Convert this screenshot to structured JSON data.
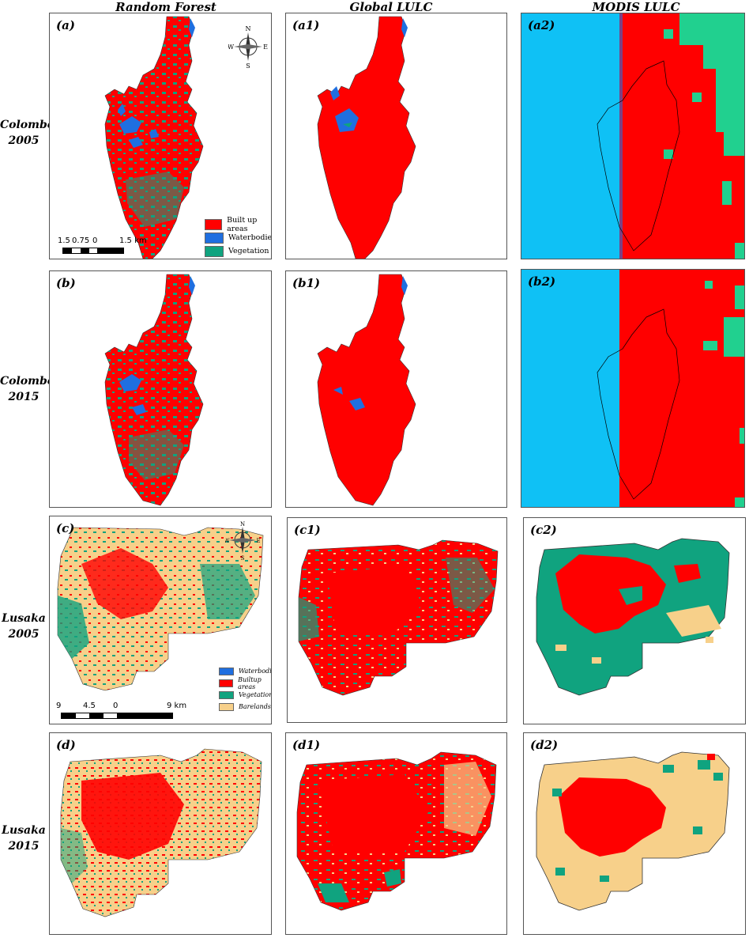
{
  "columns": {
    "rf": "Random Forest",
    "global": "Global LULC",
    "modis": "MODIS LULC"
  },
  "rows": [
    {
      "city": "Colombo",
      "year": "2005"
    },
    {
      "city": "Colombo",
      "year": "2015"
    },
    {
      "city": "Lusaka",
      "year": "2005"
    },
    {
      "city": "Lusaka",
      "year": "2015"
    }
  ],
  "panels": {
    "a": "(a)",
    "a1": "(a1)",
    "a2": "(a2)",
    "b": "(b)",
    "b1": "(b1)",
    "b2": "(b2)",
    "c": "(c)",
    "c1": "(c1)",
    "c2": "(c2)",
    "d": "(d)",
    "d1": "(d1)",
    "d2": "(d2)"
  },
  "legend_colombo": {
    "builtup": "Built up areas",
    "water": "Waterbodies",
    "veg": "Vegetation"
  },
  "legend_lusaka": {
    "water": "Waterbodies",
    "builtup": "Builtup areas",
    "veg": "Vegetation",
    "bare": "Barelands"
  },
  "scale_colombo": {
    "t0": "1.5",
    "t1": "0.75",
    "t2": "0",
    "t3": "1.5 km"
  },
  "scale_lusaka": {
    "t0": "9",
    "t1": "4.5",
    "t2": "0",
    "t3": "9 km"
  },
  "compass": {
    "n": "N",
    "s": "S",
    "e": "E",
    "w": "W"
  },
  "colors": {
    "builtup": "#ff0000",
    "water": "#1f6fe0",
    "veg": "#10a37f",
    "bare": "#f7d08a",
    "sea": "#0fc1f5",
    "modis_veg": "#21d08f"
  }
}
